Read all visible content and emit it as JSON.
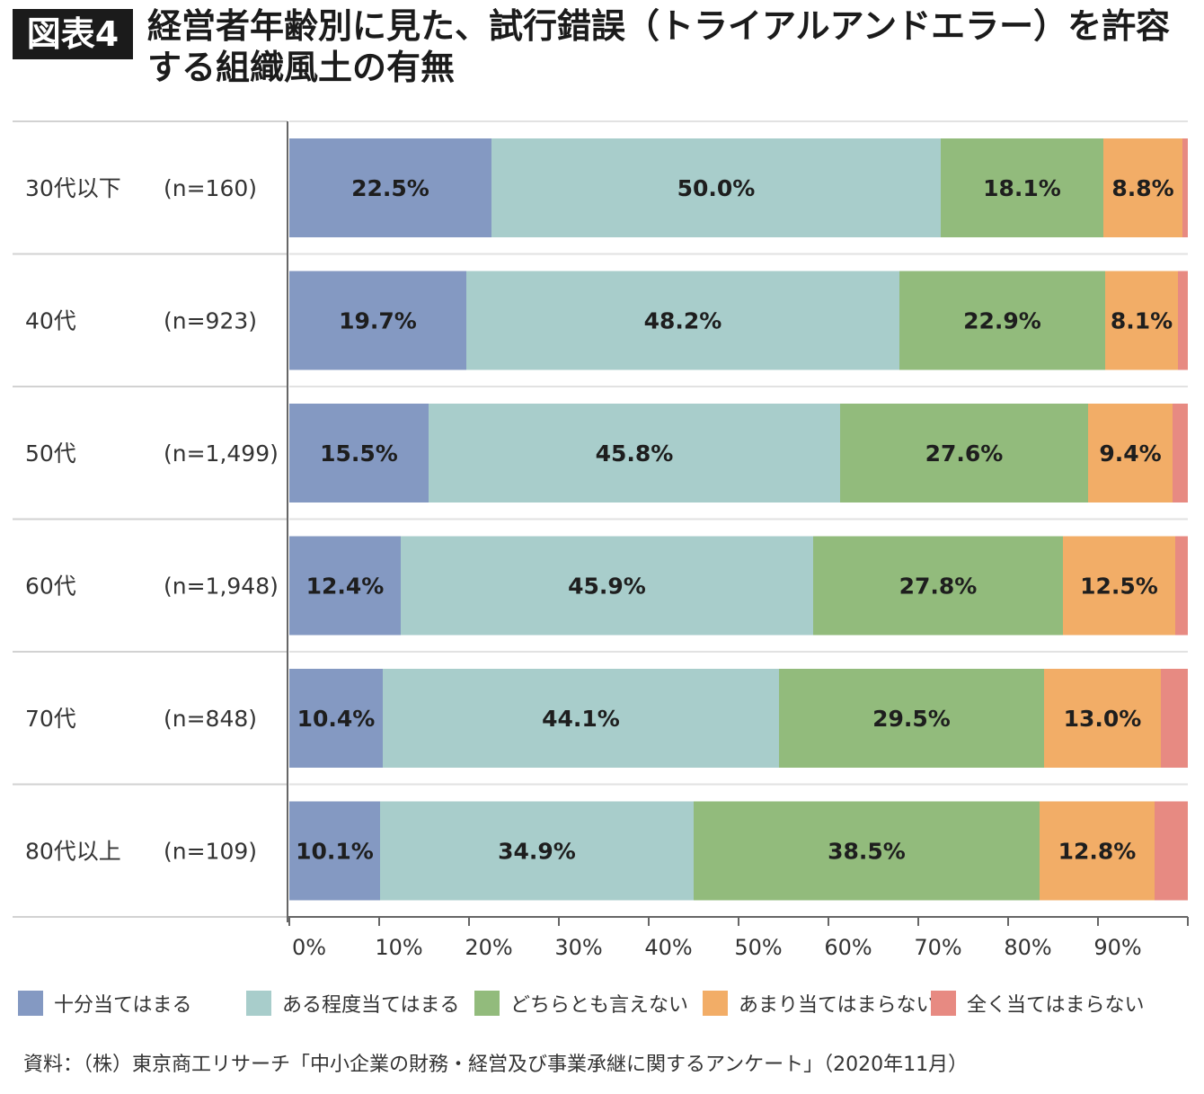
{
  "figure_label": "図表4",
  "title": "経営者年齢別に見た、試行錯誤（トライアルアンドエラー）を許容する組織風土の有無",
  "source": "資料：（株）東京商工リサーチ「中小企業の財務・経営及び事業承継に関するアンケート」（2020年11月）",
  "chart_data": {
    "type": "bar",
    "orientation": "horizontal",
    "stacked": true,
    "categories": [
      "30代以下",
      "40代",
      "50代",
      "60代",
      "70代",
      "80代以上"
    ],
    "sample_sizes": [
      "(n=160)",
      "(n=923)",
      "(n=1,499)",
      "(n=1,948)",
      "(n=848)",
      "(n=109)"
    ],
    "series": [
      {
        "name": "十分当てはまる",
        "color": "#8499c2",
        "values": [
          22.5,
          19.7,
          15.5,
          12.4,
          10.4,
          10.1
        ],
        "labels": [
          "22.5%",
          "19.7%",
          "15.5%",
          "12.4%",
          "10.4%",
          "10.1%"
        ]
      },
      {
        "name": "ある程度当てはまる",
        "color": "#a8cdcb",
        "values": [
          50.0,
          48.2,
          45.8,
          45.9,
          44.1,
          34.9
        ],
        "labels": [
          "50.0%",
          "48.2%",
          "45.8%",
          "45.9%",
          "44.1%",
          "34.9%"
        ]
      },
      {
        "name": "どちらとも言えない",
        "color": "#92bb7c",
        "values": [
          18.1,
          22.9,
          27.6,
          27.8,
          29.5,
          38.5
        ],
        "labels": [
          "18.1%",
          "22.9%",
          "27.6%",
          "27.8%",
          "29.5%",
          "38.5%"
        ]
      },
      {
        "name": "あまり当てはまらない",
        "color": "#f2ad67",
        "values": [
          8.8,
          8.1,
          9.4,
          12.5,
          13.0,
          12.8
        ],
        "labels": [
          "8.8%",
          "8.1%",
          "9.4%",
          "12.5%",
          "13.0%",
          "12.8%"
        ]
      },
      {
        "name": "全く当てはまらない",
        "color": "#e78a82",
        "values": [
          0.6,
          1.1,
          1.7,
          1.4,
          3.0,
          3.7
        ],
        "labels": [
          "",
          "",
          "",
          "",
          "",
          ""
        ]
      }
    ],
    "x_ticks": [
      "0%",
      "10%",
      "20%",
      "30%",
      "40%",
      "50%",
      "60%",
      "70%",
      "80%",
      "90%"
    ],
    "xlim": [
      0,
      100
    ],
    "legend_position": "bottom"
  }
}
